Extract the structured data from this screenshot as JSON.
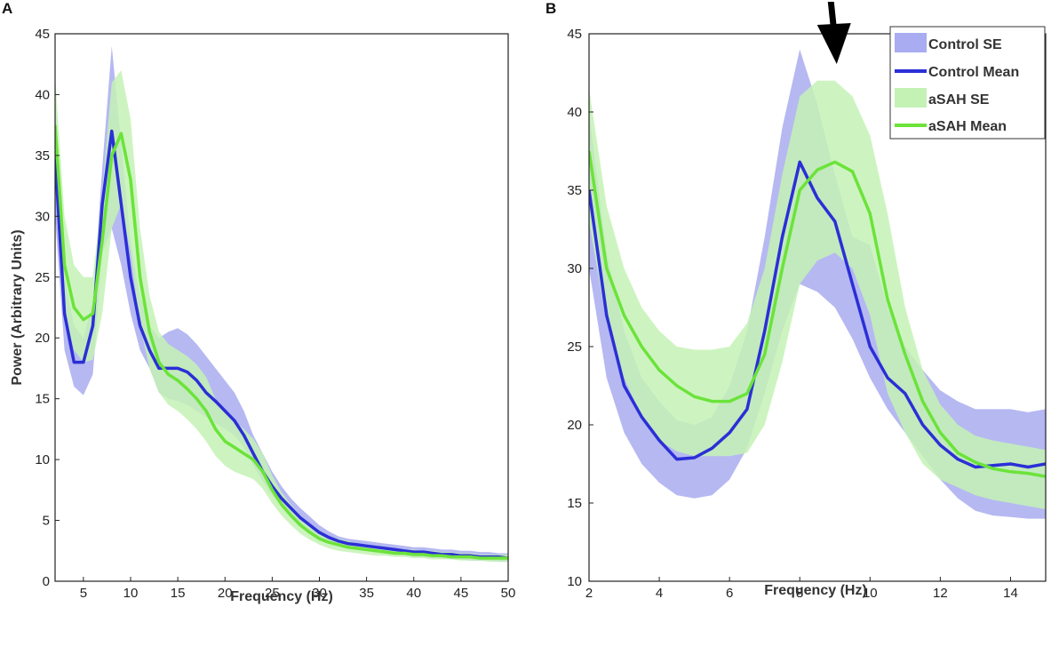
{
  "chart_data": [
    {
      "panel": "A",
      "type": "line",
      "xlabel": "Frequency (Hz)",
      "ylabel": "Power (Arbitrary Units)",
      "xlim": [
        2,
        50
      ],
      "ylim": [
        0,
        45
      ],
      "xticks": [
        5,
        10,
        15,
        20,
        25,
        30,
        35,
        40,
        45,
        50
      ],
      "yticks": [
        0,
        5,
        10,
        15,
        20,
        25,
        30,
        35,
        40,
        45
      ],
      "series": [
        {
          "name": "Control Mean",
          "color": "#2b2fd6",
          "x": [
            2,
            3,
            4,
            5,
            6,
            7,
            8,
            9,
            10,
            11,
            12,
            13,
            14,
            15,
            16,
            17,
            18,
            19,
            20,
            21,
            22,
            23,
            24,
            25,
            26,
            27,
            28,
            29,
            30,
            31,
            32,
            33,
            34,
            35,
            36,
            37,
            38,
            39,
            40,
            41,
            42,
            43,
            44,
            45,
            46,
            47,
            48,
            49,
            50
          ],
          "values": [
            35,
            22,
            18,
            18,
            21,
            31,
            37,
            31,
            25,
            21,
            19,
            17.5,
            17.5,
            17.5,
            17.2,
            16.5,
            15.5,
            14.8,
            14,
            13.2,
            12,
            10.5,
            9,
            7.8,
            6.8,
            6,
            5.2,
            4.6,
            4,
            3.6,
            3.3,
            3.1,
            3,
            2.9,
            2.8,
            2.7,
            2.6,
            2.5,
            2.4,
            2.4,
            2.3,
            2.2,
            2.2,
            2.1,
            2.1,
            2,
            2,
            2,
            1.9
          ]
        },
        {
          "name": "Control SE",
          "color": "#a9acf0",
          "x": [
            2,
            3,
            4,
            5,
            6,
            7,
            8,
            9,
            10,
            11,
            12,
            13,
            14,
            15,
            16,
            17,
            18,
            19,
            20,
            21,
            22,
            23,
            24,
            25,
            26,
            27,
            28,
            29,
            30,
            31,
            32,
            33,
            34,
            35,
            36,
            37,
            38,
            39,
            40,
            41,
            42,
            43,
            44,
            45,
            46,
            47,
            48,
            49,
            50
          ],
          "lower": [
            30,
            19,
            16,
            15.3,
            17,
            27,
            29,
            26,
            22,
            19,
            17.5,
            15.5,
            15,
            14.8,
            14.5,
            14,
            13.5,
            13,
            12.5,
            12,
            11,
            9.5,
            8.2,
            7,
            6.2,
            5.4,
            4.7,
            4.1,
            3.6,
            3.2,
            2.9,
            2.7,
            2.6,
            2.5,
            2.4,
            2.3,
            2.2,
            2.1,
            2,
            2,
            1.9,
            1.9,
            1.8,
            1.8,
            1.7,
            1.7,
            1.7,
            1.6,
            1.6
          ],
          "upper": [
            40,
            25,
            21,
            20,
            23,
            34,
            44,
            36,
            28,
            23.5,
            21,
            20,
            20.5,
            20.8,
            20.3,
            19.5,
            18.5,
            17.5,
            16.5,
            15.5,
            14,
            12,
            10.5,
            9,
            7.8,
            6.8,
            6,
            5.3,
            4.6,
            4.1,
            3.7,
            3.5,
            3.4,
            3.3,
            3.2,
            3.1,
            3,
            2.9,
            2.8,
            2.8,
            2.7,
            2.6,
            2.6,
            2.5,
            2.5,
            2.4,
            2.4,
            2.3,
            2.3
          ]
        },
        {
          "name": "aSAH Mean",
          "color": "#6be33a",
          "x": [
            2,
            3,
            4,
            5,
            6,
            7,
            8,
            9,
            10,
            11,
            12,
            13,
            14,
            15,
            16,
            17,
            18,
            19,
            20,
            21,
            22,
            23,
            24,
            25,
            26,
            27,
            28,
            29,
            30,
            31,
            32,
            33,
            34,
            35,
            36,
            37,
            38,
            39,
            40,
            41,
            42,
            43,
            44,
            45,
            46,
            47,
            48,
            49,
            50
          ],
          "values": [
            37.5,
            26,
            22.5,
            21.5,
            22,
            28,
            35,
            36.8,
            33,
            25,
            20.5,
            18,
            17,
            16.5,
            15.8,
            15,
            14,
            12.5,
            11.5,
            11,
            10.5,
            10,
            9,
            7.5,
            6.3,
            5.4,
            4.6,
            4,
            3.5,
            3.2,
            3,
            2.8,
            2.7,
            2.6,
            2.5,
            2.4,
            2.3,
            2.3,
            2.2,
            2.2,
            2.1,
            2.1,
            2,
            2,
            2,
            1.9,
            1.9,
            1.9,
            1.9
          ]
        },
        {
          "name": "aSAH SE",
          "color": "#c4f2b5",
          "x": [
            2,
            3,
            4,
            5,
            6,
            7,
            8,
            9,
            10,
            11,
            12,
            13,
            14,
            15,
            16,
            17,
            18,
            19,
            20,
            21,
            22,
            23,
            24,
            25,
            26,
            27,
            28,
            29,
            30,
            31,
            32,
            33,
            34,
            35,
            36,
            37,
            38,
            39,
            40,
            41,
            42,
            43,
            44,
            45,
            46,
            47,
            48,
            49,
            50
          ],
          "lower": [
            33,
            22,
            19,
            18,
            18.2,
            22,
            29,
            31,
            27,
            21,
            17.5,
            15.5,
            14.5,
            14,
            13.3,
            12.5,
            11.5,
            10.3,
            9.5,
            9,
            8.7,
            8.4,
            7.6,
            6.4,
            5.4,
            4.6,
            3.9,
            3.4,
            3,
            2.7,
            2.5,
            2.4,
            2.3,
            2.2,
            2.1,
            2.1,
            2,
            2,
            1.9,
            1.9,
            1.8,
            1.8,
            1.8,
            1.7,
            1.7,
            1.7,
            1.6,
            1.6,
            1.6
          ],
          "upper": [
            41.5,
            30,
            26,
            25,
            25,
            32,
            41,
            42,
            38,
            29,
            23.5,
            20.5,
            19.5,
            19,
            18.5,
            17.8,
            16.8,
            15,
            13.8,
            13.2,
            12.5,
            11.7,
            10.5,
            8.7,
            7.3,
            6.3,
            5.4,
            4.7,
            4.1,
            3.7,
            3.5,
            3.3,
            3.1,
            3,
            2.9,
            2.8,
            2.7,
            2.6,
            2.6,
            2.5,
            2.5,
            2.4,
            2.4,
            2.3,
            2.3,
            2.2,
            2.2,
            2.2,
            2.2
          ]
        }
      ]
    },
    {
      "panel": "B",
      "type": "line",
      "xlabel": "Frequency (Hz)",
      "xlim": [
        2,
        15
      ],
      "ylim": [
        10,
        45
      ],
      "xticks": [
        2,
        4,
        6,
        8,
        10,
        12,
        14
      ],
      "yticks": [
        10,
        15,
        20,
        25,
        30,
        35,
        40,
        45
      ],
      "legend": "top-right",
      "annotation": "downward arrow at ~9 Hz",
      "arrow_x": 9,
      "series": [
        {
          "name": "Control SE",
          "color": "#a9acf0",
          "x": [
            2,
            2.5,
            3,
            3.5,
            4,
            4.5,
            5,
            5.5,
            6,
            6.5,
            7,
            7.5,
            8,
            8.5,
            9,
            9.5,
            10,
            10.5,
            11,
            11.5,
            12,
            12.5,
            13,
            13.5,
            14,
            14.5,
            15
          ],
          "lower": [
            30,
            23,
            19.5,
            17.5,
            16.3,
            15.5,
            15.3,
            15.5,
            16.5,
            18.5,
            22,
            26,
            29,
            28.5,
            27.5,
            25.5,
            23,
            21,
            19.5,
            18,
            16.5,
            15.3,
            14.5,
            14.2,
            14.1,
            14,
            14
          ],
          "upper": [
            40,
            31,
            26,
            23,
            21.5,
            20.3,
            20,
            20.5,
            22.5,
            26,
            32,
            39,
            44,
            40.5,
            36,
            32,
            31.5,
            27.5,
            25,
            23.5,
            22.2,
            21.5,
            21,
            21,
            21,
            20.8,
            21
          ]
        },
        {
          "name": "Control Mean",
          "color": "#2b2fd6",
          "x": [
            2,
            2.5,
            3,
            3.5,
            4,
            4.5,
            5,
            5.5,
            6,
            6.5,
            7,
            7.5,
            8,
            8.5,
            9,
            9.5,
            10,
            10.5,
            11,
            11.5,
            12,
            12.5,
            13,
            13.5,
            14,
            14.5,
            15
          ],
          "values": [
            35,
            27,
            22.5,
            20.5,
            19,
            17.8,
            17.9,
            18.5,
            19.5,
            21,
            26,
            32,
            36.8,
            34.5,
            33,
            29,
            25,
            23,
            22,
            20,
            18.7,
            17.8,
            17.3,
            17.4,
            17.5,
            17.3,
            17.5
          ]
        },
        {
          "name": "aSAH SE",
          "color": "#c4f2b5",
          "x": [
            2,
            2.5,
            3,
            3.5,
            4,
            4.5,
            5,
            5.5,
            6,
            6.5,
            7,
            7.5,
            8,
            8.5,
            9,
            9.5,
            10,
            10.5,
            11,
            11.5,
            12,
            12.5,
            13,
            13.5,
            14,
            14.5,
            15
          ],
          "lower": [
            33,
            26.5,
            23,
            20.5,
            19,
            18.3,
            18,
            18,
            18,
            18.2,
            20,
            24,
            29,
            30.5,
            31,
            30,
            27,
            22,
            19.5,
            17.5,
            16.5,
            16,
            15.5,
            15.2,
            15,
            14.8,
            14.6
          ],
          "upper": [
            41.5,
            34,
            30,
            27.5,
            26,
            25,
            24.8,
            24.8,
            25,
            26.5,
            30,
            36,
            41,
            42,
            42,
            41,
            38.5,
            33.5,
            27.5,
            23.5,
            21.3,
            20,
            19.3,
            19,
            18.8,
            18.6,
            18.4
          ]
        },
        {
          "name": "aSAH Mean",
          "color": "#6be33a",
          "x": [
            2,
            2.5,
            3,
            3.5,
            4,
            4.5,
            5,
            5.5,
            6,
            6.5,
            7,
            7.5,
            8,
            8.5,
            9,
            9.5,
            10,
            10.5,
            11,
            11.5,
            12,
            12.5,
            13,
            13.5,
            14,
            14.5,
            15
          ],
          "values": [
            37.5,
            30,
            27,
            25,
            23.5,
            22.5,
            21.8,
            21.5,
            21.5,
            22,
            24.5,
            30,
            35,
            36.3,
            36.8,
            36.2,
            33.5,
            28,
            24.5,
            21.5,
            19.5,
            18.2,
            17.6,
            17.2,
            17,
            16.9,
            16.7
          ]
        }
      ]
    }
  ]
}
